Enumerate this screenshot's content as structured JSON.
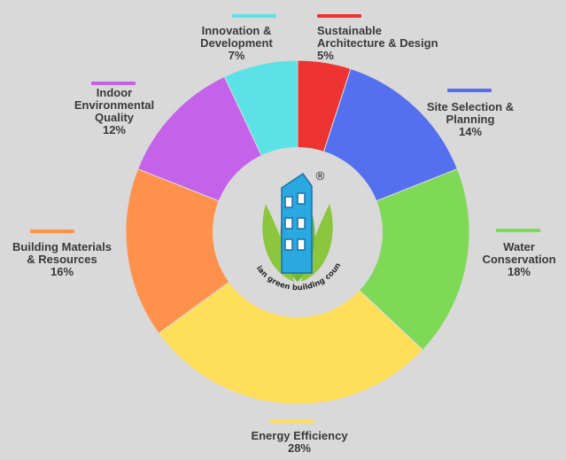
{
  "chart_data": {
    "type": "pie",
    "categories": [
      "Sustainable Architecture & Design",
      "Site Selection & Planning",
      "Water Conservation",
      "Energy Efficiency",
      "Building Materials & Resources",
      "Indoor Environmental Quality",
      "Innovation & Development"
    ],
    "values": [
      5,
      14,
      18,
      28,
      16,
      12,
      7
    ],
    "value_labels": [
      "5%",
      "14%",
      "18%",
      "28%",
      "16%",
      "12%",
      "7%"
    ],
    "colors": [
      "#ee3333",
      "#5470ee",
      "#7ed957",
      "#ffde59",
      "#ff914d",
      "#c562ea",
      "#5ce1e6"
    ],
    "label_lines": [
      [
        "Sustainable",
        "Architecture & Design"
      ],
      [
        "Site Selection &",
        "Planning"
      ],
      [
        "Water",
        "Conservation"
      ],
      [
        "Energy Efficiency"
      ],
      [
        "Building Materials",
        "& Resources"
      ],
      [
        "Indoor",
        "Environmental",
        "Quality"
      ],
      [
        "Innovation &",
        "Development"
      ]
    ],
    "donut": true
  },
  "logo": {
    "registered_mark": "®",
    "text": "indian green building council"
  }
}
